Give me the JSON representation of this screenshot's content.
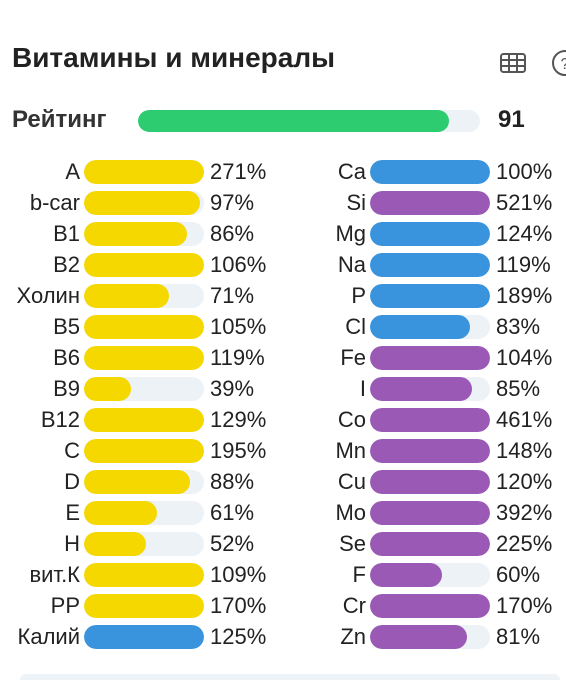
{
  "header": {
    "title": "Витамины и минералы",
    "table_icon": "table-icon",
    "help_icon": "help-icon"
  },
  "rating": {
    "label": "Рейтинг",
    "value": "91",
    "fill_percent": 91,
    "color": "#2ecc71"
  },
  "colors": {
    "vitamin": "#f4d800",
    "mineral_blue": "#3a93dd",
    "mineral_purple": "#9b59b6",
    "track": "#edf2f6"
  },
  "left_items": [
    {
      "label": "A",
      "pct": "271%",
      "fill": 100,
      "color": "#f4d800"
    },
    {
      "label": "b-car",
      "pct": "97%",
      "fill": 97,
      "color": "#f4d800"
    },
    {
      "label": "B1",
      "pct": "86%",
      "fill": 86,
      "color": "#f4d800"
    },
    {
      "label": "B2",
      "pct": "106%",
      "fill": 100,
      "color": "#f4d800"
    },
    {
      "label": "Холин",
      "pct": "71%",
      "fill": 71,
      "color": "#f4d800"
    },
    {
      "label": "B5",
      "pct": "105%",
      "fill": 100,
      "color": "#f4d800"
    },
    {
      "label": "B6",
      "pct": "119%",
      "fill": 100,
      "color": "#f4d800"
    },
    {
      "label": "B9",
      "pct": "39%",
      "fill": 39,
      "color": "#f4d800"
    },
    {
      "label": "B12",
      "pct": "129%",
      "fill": 100,
      "color": "#f4d800"
    },
    {
      "label": "C",
      "pct": "195%",
      "fill": 100,
      "color": "#f4d800"
    },
    {
      "label": "D",
      "pct": "88%",
      "fill": 88,
      "color": "#f4d800"
    },
    {
      "label": "E",
      "pct": "61%",
      "fill": 61,
      "color": "#f4d800"
    },
    {
      "label": "H",
      "pct": "52%",
      "fill": 52,
      "color": "#f4d800"
    },
    {
      "label": "вит.К",
      "pct": "109%",
      "fill": 100,
      "color": "#f4d800"
    },
    {
      "label": "PP",
      "pct": "170%",
      "fill": 100,
      "color": "#f4d800"
    },
    {
      "label": "Калий",
      "pct": "125%",
      "fill": 100,
      "color": "#3a93dd"
    }
  ],
  "right_items": [
    {
      "label": "Ca",
      "pct": "100%",
      "fill": 100,
      "color": "#3a93dd"
    },
    {
      "label": "Si",
      "pct": "521%",
      "fill": 100,
      "color": "#9b59b6"
    },
    {
      "label": "Mg",
      "pct": "124%",
      "fill": 100,
      "color": "#3a93dd"
    },
    {
      "label": "Na",
      "pct": "119%",
      "fill": 100,
      "color": "#3a93dd"
    },
    {
      "label": "P",
      "pct": "189%",
      "fill": 100,
      "color": "#3a93dd"
    },
    {
      "label": "Cl",
      "pct": "83%",
      "fill": 83,
      "color": "#3a93dd"
    },
    {
      "label": "Fe",
      "pct": "104%",
      "fill": 100,
      "color": "#9b59b6"
    },
    {
      "label": "I",
      "pct": "85%",
      "fill": 85,
      "color": "#9b59b6"
    },
    {
      "label": "Co",
      "pct": "461%",
      "fill": 100,
      "color": "#9b59b6"
    },
    {
      "label": "Mn",
      "pct": "148%",
      "fill": 100,
      "color": "#9b59b6"
    },
    {
      "label": "Cu",
      "pct": "120%",
      "fill": 100,
      "color": "#9b59b6"
    },
    {
      "label": "Mo",
      "pct": "392%",
      "fill": 100,
      "color": "#9b59b6"
    },
    {
      "label": "Se",
      "pct": "225%",
      "fill": 100,
      "color": "#9b59b6"
    },
    {
      "label": "F",
      "pct": "60%",
      "fill": 60,
      "color": "#9b59b6"
    },
    {
      "label": "Cr",
      "pct": "170%",
      "fill": 100,
      "color": "#9b59b6"
    },
    {
      "label": "Zn",
      "pct": "81%",
      "fill": 81,
      "color": "#9b59b6"
    }
  ]
}
